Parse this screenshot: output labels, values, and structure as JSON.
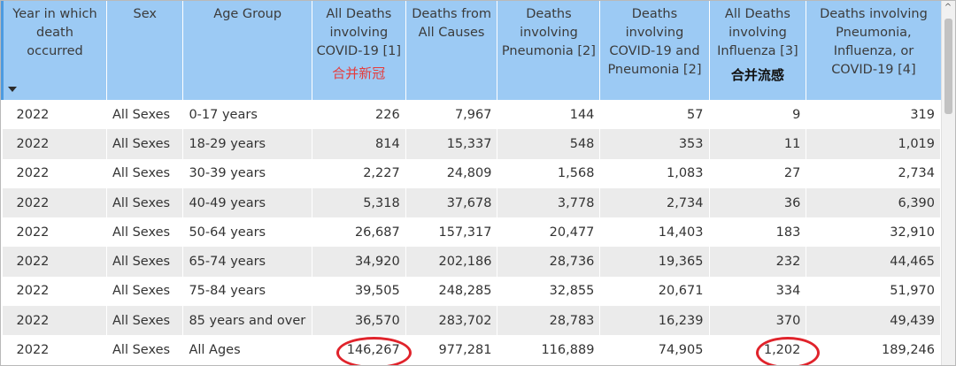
{
  "table": {
    "columns": [
      {
        "label": "Year in which death occurred",
        "note": ""
      },
      {
        "label": "Sex",
        "note": ""
      },
      {
        "label": "Age Group",
        "note": ""
      },
      {
        "label": "All Deaths involving COVID-19 [1]",
        "note": "合并新冠"
      },
      {
        "label": "Deaths from All Causes",
        "note": ""
      },
      {
        "label": "Deaths involving Pneumonia [2]",
        "note": ""
      },
      {
        "label": "Deaths involving COVID-19 and Pneumonia [2]",
        "note": ""
      },
      {
        "label": "All Deaths involving Influenza [3]",
        "note": "合并流感"
      },
      {
        "label": "Deaths involving Pneumonia, Influenza, or COVID-19 [4]",
        "note": ""
      }
    ],
    "rows": [
      [
        "2022",
        "All Sexes",
        "0-17 years",
        "226",
        "7,967",
        "144",
        "57",
        "9",
        "319"
      ],
      [
        "2022",
        "All Sexes",
        "18-29 years",
        "814",
        "15,337",
        "548",
        "353",
        "11",
        "1,019"
      ],
      [
        "2022",
        "All Sexes",
        "30-39 years",
        "2,227",
        "24,809",
        "1,568",
        "1,083",
        "27",
        "2,734"
      ],
      [
        "2022",
        "All Sexes",
        "40-49 years",
        "5,318",
        "37,678",
        "3,778",
        "2,734",
        "36",
        "6,390"
      ],
      [
        "2022",
        "All Sexes",
        "50-64 years",
        "26,687",
        "157,317",
        "20,477",
        "14,403",
        "183",
        "32,910"
      ],
      [
        "2022",
        "All Sexes",
        "65-74 years",
        "34,920",
        "202,186",
        "28,736",
        "19,365",
        "232",
        "44,465"
      ],
      [
        "2022",
        "All Sexes",
        "75-84 years",
        "39,505",
        "248,285",
        "32,855",
        "20,671",
        "334",
        "51,970"
      ],
      [
        "2022",
        "All Sexes",
        "85 years and over",
        "36,570",
        "283,702",
        "28,783",
        "16,239",
        "370",
        "49,439"
      ],
      [
        "2022",
        "All Sexes",
        "All Ages",
        "146,267",
        "977,281",
        "116,889",
        "74,905",
        "1,202",
        "189,246"
      ]
    ]
  },
  "icons": {
    "sort": "sort-descending-icon",
    "scroll_up": "scroll-up-arrow-icon"
  },
  "colors": {
    "header_bg": "#9ccaf4",
    "row_alt": "#ebebeb",
    "highlight_circle": "#e0232b",
    "note_red": "#e63b3b"
  }
}
